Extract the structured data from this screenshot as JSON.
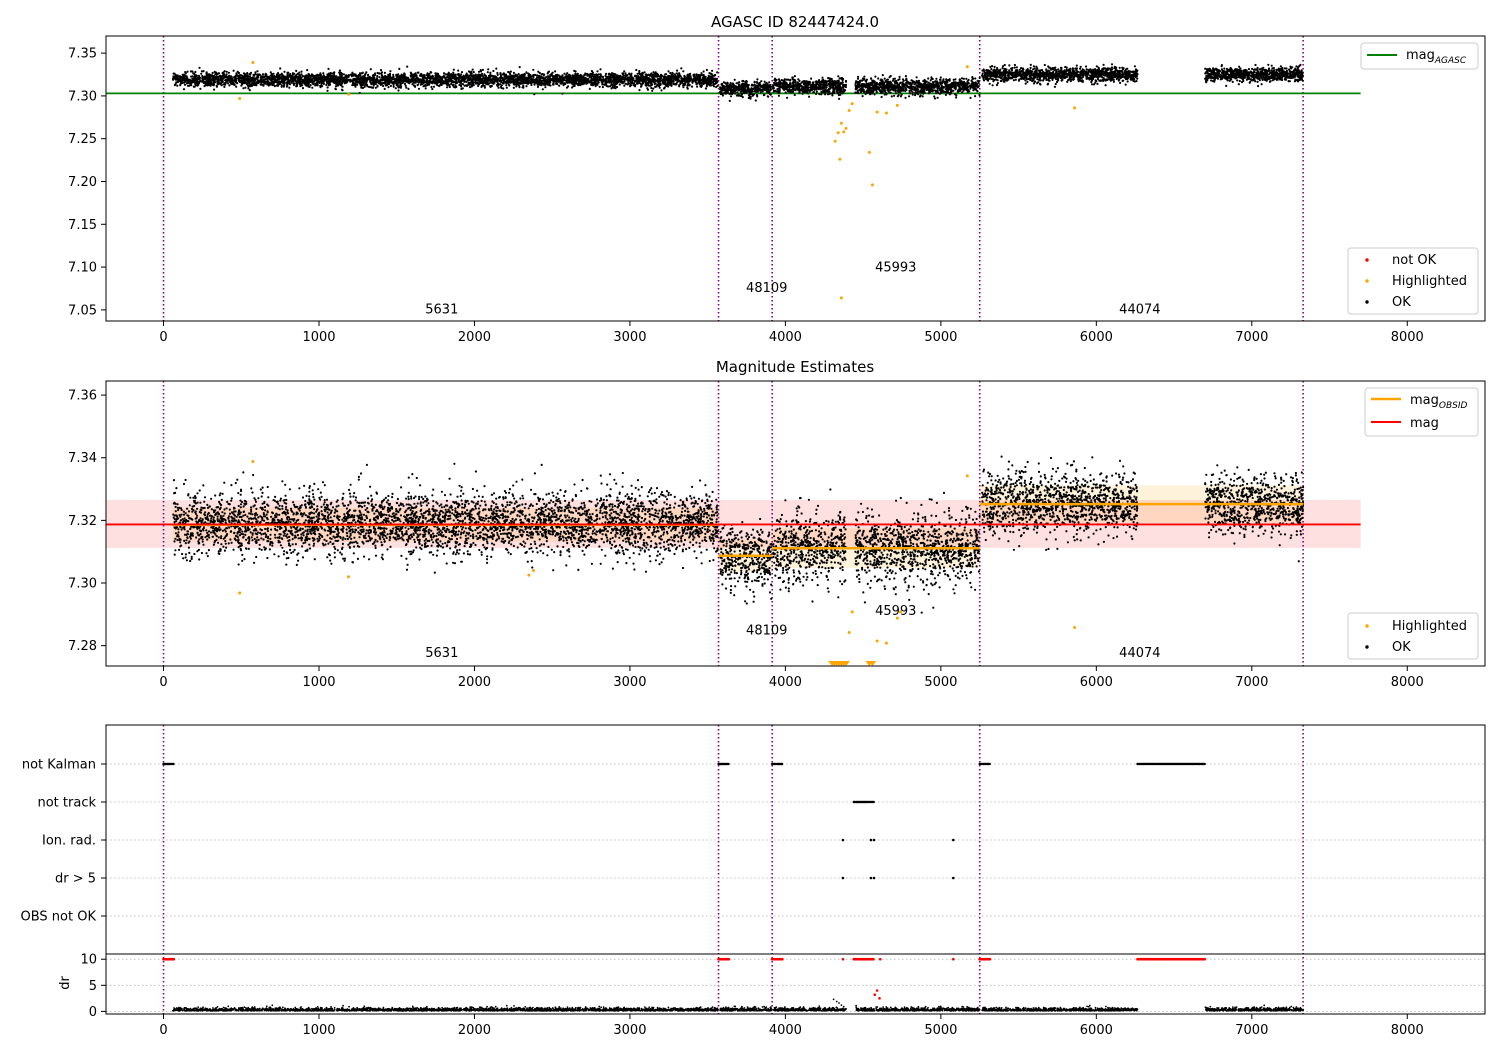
{
  "chart_data": [
    {
      "type": "scatter",
      "title": "AGASC ID 82447424.0",
      "xlim": [
        -370,
        8500
      ],
      "ylim": [
        7.037,
        7.37
      ],
      "xticks": [
        0,
        1000,
        2000,
        3000,
        4000,
        5000,
        6000,
        7000,
        8000
      ],
      "yticks": [
        7.05,
        7.1,
        7.15,
        7.2,
        7.25,
        7.3,
        7.35
      ],
      "obsid_boundaries": [
        0,
        3570,
        3915,
        5250,
        7330
      ],
      "obsid_labels": [
        {
          "text": "5631",
          "x": 1790,
          "y": 7.046
        },
        {
          "text": "48109",
          "x": 3880,
          "y": 7.071
        },
        {
          "text": "45993",
          "x": 4710,
          "y": 7.095
        },
        {
          "text": "44074",
          "x": 6280,
          "y": 7.046
        }
      ],
      "lines": [
        {
          "name": "mag_AGASC",
          "color": "#008000",
          "x": [
            -370,
            7700
          ],
          "y": [
            7.303,
            7.303
          ]
        }
      ],
      "segments": [
        {
          "x": [
            60,
            3565
          ],
          "mean": 7.319,
          "spread": 0.009
        },
        {
          "x": [
            3580,
            3910
          ],
          "mean": 7.308,
          "spread": 0.009
        },
        {
          "x": [
            3920,
            4390
          ],
          "mean": 7.311,
          "spread": 0.01
        },
        {
          "x": [
            4450,
            5250
          ],
          "mean": 7.311,
          "spread": 0.01
        },
        {
          "x": [
            5265,
            6265
          ],
          "mean": 7.325,
          "spread": 0.009
        },
        {
          "x": [
            6700,
            7330
          ],
          "mean": 7.325,
          "spread": 0.009
        }
      ],
      "highlighted": [
        [
          490,
          7.297
        ],
        [
          575,
          7.339
        ],
        [
          1190,
          7.302
        ],
        [
          4320,
          7.247
        ],
        [
          4340,
          7.257
        ],
        [
          4350,
          7.226
        ],
        [
          4360,
          7.268
        ],
        [
          4375,
          7.258
        ],
        [
          4390,
          7.262
        ],
        [
          4410,
          7.283
        ],
        [
          4430,
          7.291
        ],
        [
          4540,
          7.234
        ],
        [
          4560,
          7.196
        ],
        [
          4590,
          7.281
        ],
        [
          4650,
          7.28
        ],
        [
          4720,
          7.289
        ],
        [
          5170,
          7.334
        ],
        [
          5860,
          7.286
        ]
      ],
      "outliers": [
        [
          4360,
          7.064
        ]
      ],
      "legend_upper": {
        "label_main": "mag",
        "label_sub": "AGASC",
        "placement": "upper right"
      },
      "legend_lower": {
        "items": [
          "not OK",
          "Highlighted",
          "OK"
        ],
        "colors": [
          "#ff0000",
          "#ffa500",
          "#000000"
        ],
        "placement": "lower right"
      }
    },
    {
      "type": "scatter",
      "title": "Magnitude Estimates",
      "xlim": [
        -370,
        8500
      ],
      "ylim": [
        7.2735,
        7.3645
      ],
      "xticks": [
        0,
        1000,
        2000,
        3000,
        4000,
        5000,
        6000,
        7000,
        8000
      ],
      "yticks": [
        7.28,
        7.3,
        7.32,
        7.34,
        7.36
      ],
      "obsid_boundaries": [
        0,
        3570,
        3915,
        5250,
        7330
      ],
      "obsid_labels": [
        {
          "text": "5631",
          "x": 1790,
          "y": 7.2763
        },
        {
          "text": "48109",
          "x": 3880,
          "y": 7.2835
        },
        {
          "text": "45993",
          "x": 4710,
          "y": 7.2898
        },
        {
          "text": "44074",
          "x": 6280,
          "y": 7.2763
        }
      ],
      "mag": {
        "name": "mag",
        "color": "#ff0000",
        "value": 7.3187,
        "band": [
          7.3112,
          7.3265
        ],
        "x": [
          -370,
          7700
        ]
      },
      "mag_obsid": [
        {
          "x": [
            60,
            3570
          ],
          "value": 7.3186,
          "band": [
            7.3132,
            7.324
          ]
        },
        {
          "x": [
            3570,
            3915
          ],
          "value": 7.3087,
          "band": [
            7.3035,
            7.314
          ]
        },
        {
          "x": [
            3915,
            5250
          ],
          "value": 7.3111,
          "band": [
            7.3048,
            7.3175
          ]
        },
        {
          "x": [
            5250,
            7330
          ],
          "value": 7.3252,
          "band": [
            7.3192,
            7.3312
          ]
        }
      ],
      "highlighted": [
        [
          490,
          7.2968
        ],
        [
          575,
          7.3388
        ],
        [
          1190,
          7.302
        ],
        [
          2350,
          7.3025
        ],
        [
          2380,
          7.304
        ],
        [
          4410,
          7.2842
        ],
        [
          4430,
          7.2908
        ],
        [
          4590,
          7.2815
        ],
        [
          4650,
          7.2808
        ],
        [
          4720,
          7.2888
        ],
        [
          4740,
          7.2908
        ],
        [
          5170,
          7.3342
        ],
        [
          5860,
          7.2858
        ]
      ],
      "clipped": [
        4300,
        4315,
        4330,
        4345,
        4360,
        4375,
        4390,
        4540,
        4560
      ],
      "legend_upper": {
        "items": [
          {
            "label_main": "mag",
            "label_sub": "OBSID",
            "color": "#ffa500"
          },
          {
            "label_main": "mag",
            "label_sub": "",
            "color": "#ff0000"
          }
        ],
        "placement": "upper right"
      },
      "legend_lower": {
        "items": [
          "Highlighted",
          "OK"
        ],
        "colors": [
          "#ffa500",
          "#000000"
        ],
        "placement": "lower right"
      }
    },
    {
      "type": "scatter",
      "title": "",
      "xlim": [
        -370,
        8500
      ],
      "xticks": [
        0,
        1000,
        2000,
        3000,
        4000,
        5000,
        6000,
        7000,
        8000
      ],
      "flag_labels": [
        "not Kalman",
        "not track",
        "Ion. rad.",
        "dr > 5",
        "OBS not OK"
      ],
      "flags": [
        {
          "label": "not Kalman",
          "ranges": [
            [
              0,
              70
            ],
            [
              3570,
              3640
            ],
            [
              3915,
              3985
            ],
            [
              5250,
              5320
            ],
            [
              6265,
              6700
            ]
          ],
          "points": []
        },
        {
          "label": "not track",
          "ranges": [
            [
              4440,
              4570
            ]
          ],
          "points": []
        },
        {
          "label": "Ion. rad.",
          "ranges": [],
          "points": [
            4370,
            4550,
            4570,
            5080
          ]
        },
        {
          "label": "dr > 5",
          "ranges": [],
          "points": [
            4370,
            4550,
            4570,
            5080
          ]
        },
        {
          "label": "OBS not OK",
          "ranges": [],
          "points": []
        }
      ],
      "dr_label": "dr",
      "dr_ylim": [
        -0.5,
        11
      ],
      "dr_yticks": [
        0,
        5,
        10
      ],
      "dr_ok_segments": [
        [
          60,
          3565
        ],
        [
          3580,
          3910
        ],
        [
          3920,
          4390
        ],
        [
          4450,
          5250
        ],
        [
          5265,
          6265
        ],
        [
          6700,
          7330
        ]
      ],
      "dr_bad_ranges": [
        [
          0,
          70
        ],
        [
          3570,
          3640
        ],
        [
          3915,
          3985
        ],
        [
          4440,
          4570
        ],
        [
          5250,
          5320
        ],
        [
          6265,
          6700
        ]
      ],
      "dr_bad_points": [
        [
          4370,
          10
        ],
        [
          4610,
          10
        ],
        [
          5080,
          10
        ]
      ],
      "dr_spike": [
        [
          4310,
          2.3
        ],
        [
          4330,
          1.9
        ],
        [
          4345,
          1.6
        ],
        [
          4360,
          1.2
        ],
        [
          4375,
          0.9
        ],
        [
          4390,
          0.5
        ]
      ],
      "dr_red_mid": [
        [
          4575,
          3.2
        ],
        [
          4590,
          4.0
        ],
        [
          4605,
          2.5
        ]
      ]
    }
  ]
}
